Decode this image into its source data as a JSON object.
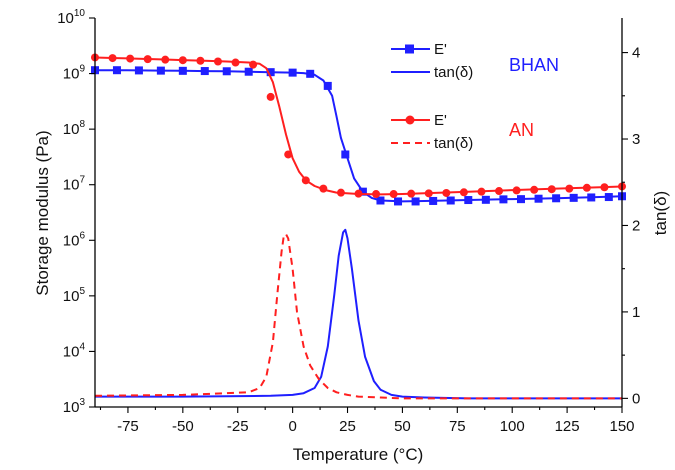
{
  "chart_data": {
    "type": "line",
    "xlabel": "Temperature (°C)",
    "ylabel_left": "Storage modulus (Pa)",
    "ylabel_right": "tan(δ)",
    "x_range": [
      -90,
      150
    ],
    "x_ticks": [
      -75,
      -50,
      -25,
      0,
      25,
      50,
      75,
      100,
      125,
      150
    ],
    "y_left_scale": "log",
    "y_left_range": [
      1000,
      10000000000
    ],
    "y_left_ticks": [
      {
        "base": "10",
        "exp": "3",
        "value": 1000
      },
      {
        "base": "10",
        "exp": "4",
        "value": 10000
      },
      {
        "base": "10",
        "exp": "5",
        "value": 100000
      },
      {
        "base": "10",
        "exp": "6",
        "value": 1000000
      },
      {
        "base": "10",
        "exp": "7",
        "value": 10000000
      },
      {
        "base": "10",
        "exp": "8",
        "value": 100000000
      },
      {
        "base": "10",
        "exp": "9",
        "value": 1000000000
      },
      {
        "base": "10",
        "exp": "10",
        "value": 10000000000
      }
    ],
    "y_right_range": [
      -0.1,
      4.4
    ],
    "y_right_ticks": [
      0,
      1,
      2,
      3,
      4
    ],
    "grid": false,
    "legend_groups": [
      {
        "label": "BHAN",
        "color": "#1f1fff",
        "entries": [
          "E'",
          "tan(δ)"
        ]
      },
      {
        "label": "AN",
        "color": "#ff1f1f",
        "entries": [
          "E'",
          "tan(δ)"
        ]
      }
    ],
    "series": [
      {
        "name": "E'",
        "group": "BHAN",
        "axis": "left",
        "color": "#1f1fff",
        "marker": "square",
        "line": "solid",
        "x": [
          -90,
          -80,
          -70,
          -60,
          -50,
          -40,
          -30,
          -20,
          -10,
          0,
          5,
          10,
          14,
          18,
          20,
          22,
          25,
          28,
          32,
          36,
          40,
          50,
          60,
          80,
          100,
          120,
          140,
          150
        ],
        "y": [
          1150000000,
          1150000000,
          1140000000,
          1130000000,
          1120000000,
          1110000000,
          1100000000,
          1080000000,
          1060000000,
          1040000000,
          1020000000,
          950000000,
          750000000,
          400000000,
          170000000,
          70000000,
          30000000,
          13000000,
          7500000,
          5800000,
          5200000,
          5000000,
          5100000,
          5300000,
          5500000,
          5700000,
          6000000,
          6200000
        ],
        "markers_x": [
          -90,
          -80,
          -70,
          -60,
          -50,
          -40,
          -30,
          -20,
          -10,
          0,
          8,
          16,
          24,
          32,
          40,
          48,
          56,
          64,
          72,
          80,
          88,
          96,
          104,
          112,
          120,
          128,
          136,
          144,
          150
        ],
        "markers_y": [
          1150000000,
          1150000000,
          1140000000,
          1130000000,
          1120000000,
          1110000000,
          1100000000,
          1080000000,
          1060000000,
          1040000000,
          990000000,
          600000000,
          35000000,
          7500000,
          5200000,
          5000000,
          5000000,
          5100000,
          5200000,
          5300000,
          5350000,
          5450000,
          5500000,
          5600000,
          5700000,
          5800000,
          5900000,
          6000000,
          6200000
        ]
      },
      {
        "name": "tan(δ)",
        "group": "BHAN",
        "axis": "right",
        "color": "#1f1fff",
        "marker": "none",
        "line": "solid",
        "x": [
          -90,
          -50,
          -10,
          0,
          5,
          10,
          13,
          16,
          19,
          21,
          23,
          24,
          25,
          27,
          30,
          33,
          37,
          40,
          45,
          50,
          60,
          80,
          100,
          120,
          150
        ],
        "y": [
          0.02,
          0.02,
          0.03,
          0.04,
          0.06,
          0.12,
          0.25,
          0.6,
          1.2,
          1.65,
          1.92,
          1.95,
          1.85,
          1.5,
          0.9,
          0.48,
          0.2,
          0.1,
          0.04,
          0.02,
          0.01,
          0.0,
          0.0,
          0.0,
          0.0
        ]
      },
      {
        "name": "E'",
        "group": "AN",
        "axis": "left",
        "color": "#ff1f1f",
        "marker": "circle",
        "line": "solid",
        "x": [
          -90,
          -80,
          -70,
          -60,
          -50,
          -40,
          -30,
          -20,
          -15,
          -12,
          -9,
          -6,
          -3,
          0,
          3,
          6,
          10,
          15,
          20,
          30,
          40,
          50,
          60,
          80,
          100,
          120,
          140,
          150
        ],
        "y": [
          1950000000,
          1900000000,
          1850000000,
          1800000000,
          1750000000,
          1700000000,
          1650000000,
          1580000000,
          1500000000,
          1250000000,
          700000000,
          250000000,
          80000000,
          30000000,
          17000000,
          12000000,
          9500000,
          8000000,
          7200000,
          6800000,
          6700000,
          6800000,
          7000000,
          7500000,
          8000000,
          8500000,
          9000000,
          9300000
        ],
        "markers_x": [
          -90,
          -82,
          -74,
          -66,
          -58,
          -50,
          -42,
          -34,
          -26,
          -18,
          -10,
          -2,
          6,
          14,
          22,
          30,
          38,
          46,
          54,
          62,
          70,
          78,
          86,
          94,
          102,
          110,
          118,
          126,
          134,
          142,
          150
        ],
        "markers_y": [
          1950000000,
          1900000000,
          1860000000,
          1820000000,
          1780000000,
          1740000000,
          1700000000,
          1650000000,
          1580000000,
          1450000000,
          380000000,
          35000000,
          12000000,
          8500000,
          7200000,
          6900000,
          6800000,
          6800000,
          6900000,
          7000000,
          7100000,
          7300000,
          7500000,
          7700000,
          7900000,
          8100000,
          8300000,
          8500000,
          8800000,
          9000000,
          9300000
        ]
      },
      {
        "name": "tan(δ)",
        "group": "AN",
        "axis": "right",
        "color": "#ff1f1f",
        "marker": "none",
        "line": "dashed",
        "x": [
          -90,
          -50,
          -20,
          -15,
          -12,
          -9,
          -7,
          -5,
          -4,
          -3,
          -2,
          0,
          2,
          5,
          8,
          12,
          16,
          20,
          25,
          30,
          40,
          50,
          75,
          100,
          150
        ],
        "y": [
          0.03,
          0.04,
          0.07,
          0.12,
          0.25,
          0.65,
          1.2,
          1.7,
          1.88,
          1.9,
          1.85,
          1.5,
          1.0,
          0.6,
          0.38,
          0.22,
          0.12,
          0.07,
          0.04,
          0.02,
          0.01,
          0.0,
          0.0,
          0.0,
          0.0
        ]
      }
    ]
  }
}
